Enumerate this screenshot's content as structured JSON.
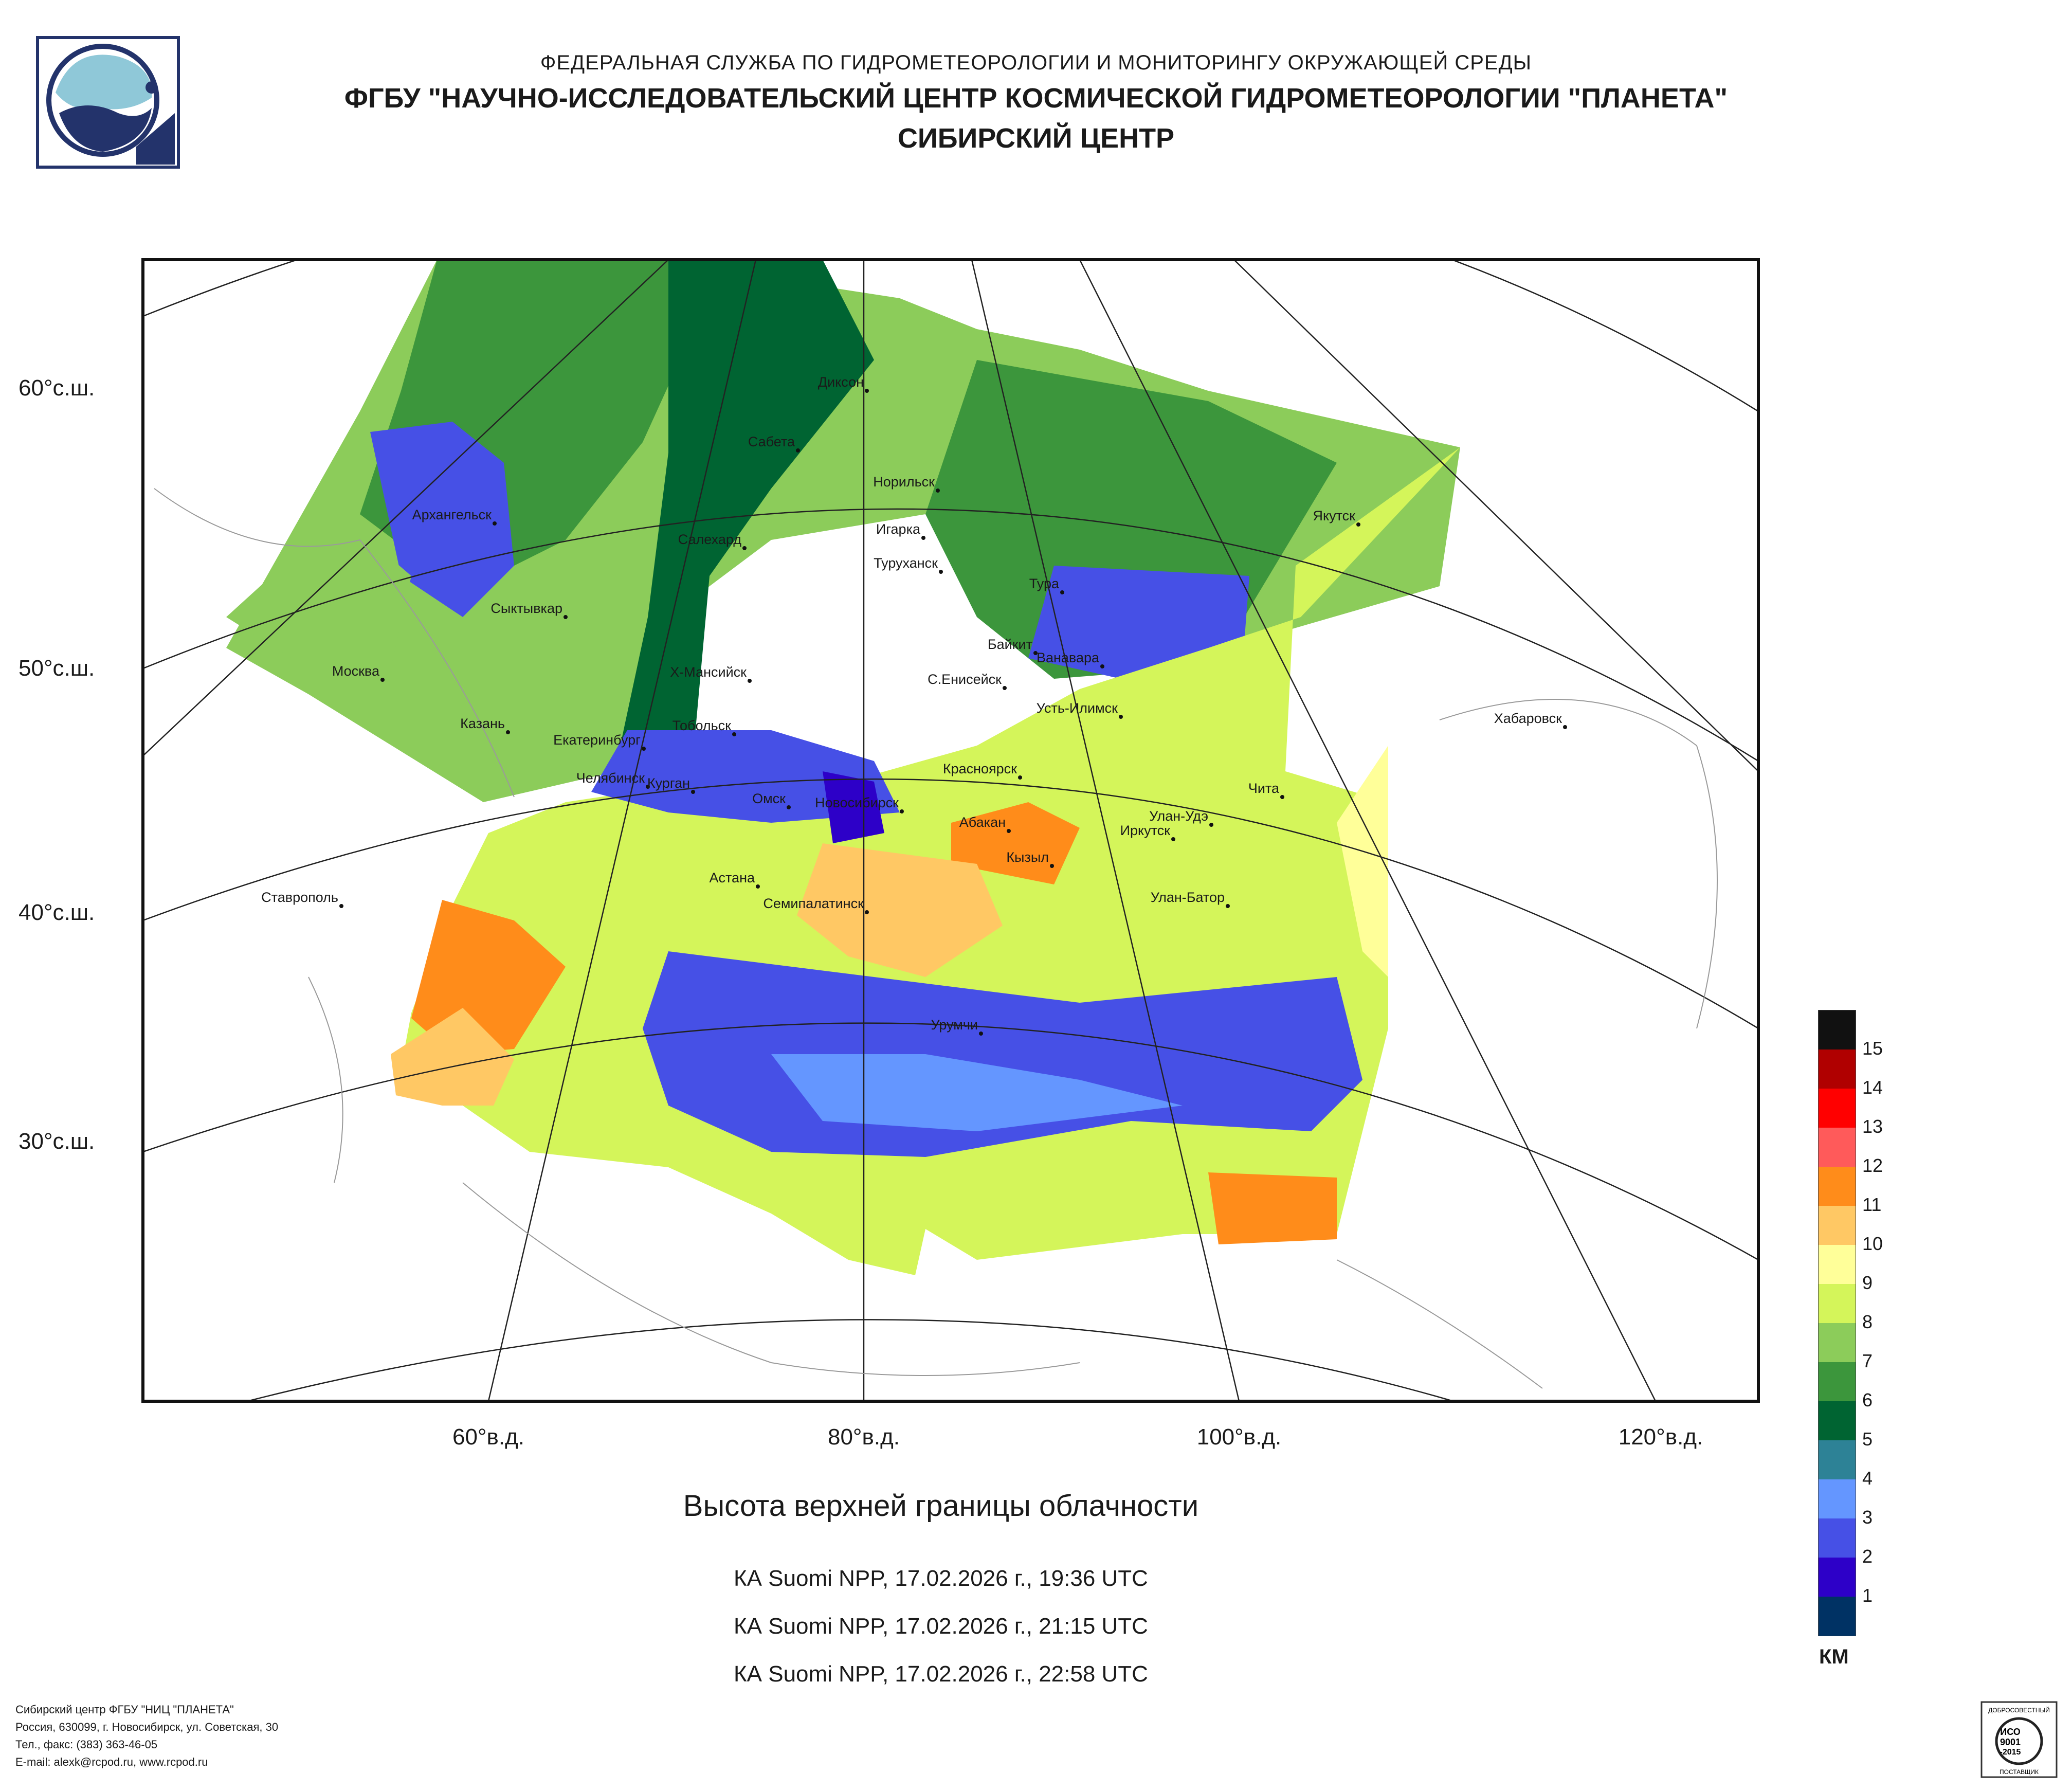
{
  "header": {
    "line1": "ФЕДЕРАЛЬНАЯ СЛУЖБА ПО ГИДРОМЕТЕОРОЛОГИИ И МОНИТОРИНГУ ОКРУЖАЮЩЕЙ СРЕДЫ",
    "line2": "ФГБУ \"НАУЧНО-ИССЛЕДОВАТЕЛЬСКИЙ ЦЕНТР КОСМИЧЕСКОЙ ГИДРОМЕТЕОРОЛОГИИ \"ПЛАНЕТА\"",
    "line3": "СИБИРСКИЙ ЦЕНТР"
  },
  "map": {
    "lat_labels": [
      "60°с.ш.",
      "50°с.ш.",
      "40°с.ш.",
      "30°с.ш."
    ],
    "lon_labels": [
      "60°в.д.",
      "80°в.д.",
      "100°в.д.",
      "120°в.д."
    ],
    "cities": [
      "Диксон",
      "Сабета",
      "Норильск",
      "Якутск",
      "Архангельск",
      "Салехард",
      "Игарка",
      "Туруханск",
      "Тура",
      "Сыктывкар",
      "Байкит",
      "Ванавара",
      "Москва",
      "Х-Мансийск",
      "С.Енисейск",
      "Усть-Илимск",
      "Хабаровск",
      "Казань",
      "Тобольск",
      "Екатеринбург",
      "Челябинск",
      "Курган",
      "Красноярск",
      "Чита",
      "Омск",
      "Новосибирск",
      "Абакан",
      "Улан-Удэ",
      "Иркутск",
      "Кызыл",
      "Астана",
      "Ставрополь",
      "Семипалатинск",
      "Улан-Батор",
      "Урумчи"
    ]
  },
  "product_title": "Высота верхней границы облачности",
  "passes": [
    "КА Suomi NPP, 17.02.2026 г., 19:36 UTC",
    "КА Suomi NPP, 17.02.2026 г., 21:15 UTC",
    "КА Suomi NPP, 17.02.2026 г., 22:58 UTC"
  ],
  "legend": {
    "unit": "КМ",
    "levels": [
      "15",
      "14",
      "13",
      "12",
      "11",
      "10",
      "9",
      "8",
      "7",
      "6",
      "5",
      "4",
      "3",
      "2",
      "1"
    ],
    "colors": [
      "#111111",
      "#b00000",
      "#ff0000",
      "#ff5a5a",
      "#ff8c1a",
      "#ffc864",
      "#ffff99",
      "#d4f55a",
      "#8ccc5a",
      "#3c963c",
      "#006432",
      "#2d8296",
      "#6496ff",
      "#4650e6",
      "#2d00c8",
      "#003264"
    ]
  },
  "footer": [
    "Сибирский центр ФГБУ \"НИЦ \"ПЛАНЕТА\"",
    "Россия, 630099, г. Новосибирск, ул. Советская, 30",
    "Тел., факс: (383) 363-46-05",
    "E-mail: alexk@rcpod.ru, www.rcpod.ru"
  ],
  "certificate": {
    "top": "ДОБРОСОВЕСТНЫЙ",
    "mid1": "ИСО",
    "mid2": "9001",
    "mid3": "-2015",
    "bottom": "ПОСТАВЩИК"
  }
}
